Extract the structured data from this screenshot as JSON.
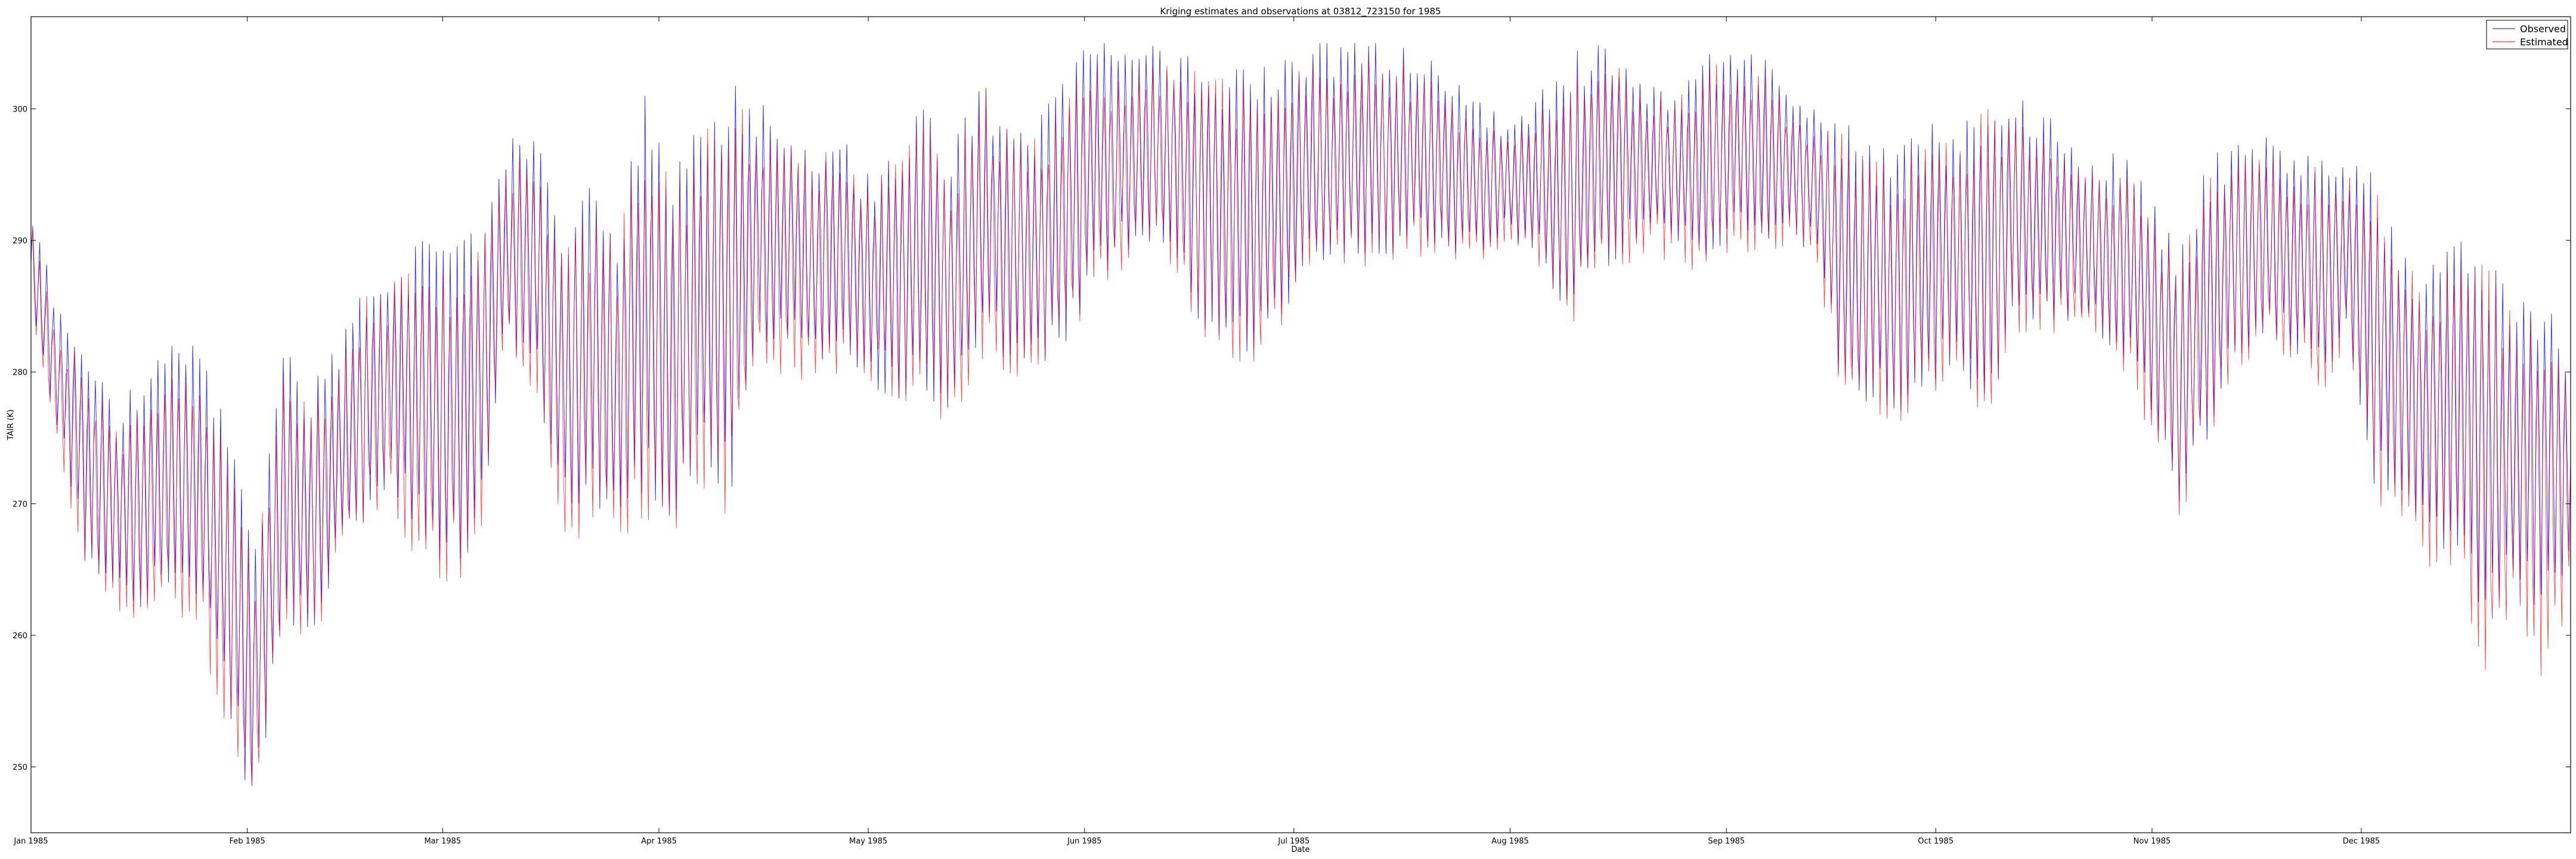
{
  "chart_data": {
    "type": "line",
    "title": "Kriging estimates and observations at 03812_723150 for 1985",
    "xlabel": "Date",
    "ylabel": "TAIR (K)",
    "xlim": [
      "1985-01-01",
      "1985-12-31"
    ],
    "ylim": [
      245,
      307
    ],
    "grid": false,
    "legend_position": "top-right",
    "x_ticks": [
      "Jan 1985",
      "Feb 1985",
      "Mar 1985",
      "Apr 1985",
      "May 1985",
      "Jun 1985",
      "Jul 1985",
      "Aug 1985",
      "Sep 1985",
      "Oct 1985",
      "Nov 1985",
      "Dec 1985"
    ],
    "x_tick_dates": [
      "1985-01-01",
      "1985-02-01",
      "1985-03-01",
      "1985-04-01",
      "1985-05-01",
      "1985-06-01",
      "1985-07-01",
      "1985-08-01",
      "1985-09-01",
      "1985-10-01",
      "1985-11-01",
      "1985-12-01"
    ],
    "y_ticks": [
      250,
      260,
      270,
      280,
      290,
      300
    ],
    "x": [
      "1985-01-01",
      "1985-01-05",
      "1985-01-09",
      "1985-01-13",
      "1985-01-17",
      "1985-01-21",
      "1985-01-25",
      "1985-01-29",
      "1985-02-02",
      "1985-02-06",
      "1985-02-10",
      "1985-02-14",
      "1985-02-18",
      "1985-02-22",
      "1985-02-26",
      "1985-03-02",
      "1985-03-06",
      "1985-03-10",
      "1985-03-14",
      "1985-03-18",
      "1985-03-22",
      "1985-03-26",
      "1985-03-30",
      "1985-04-03",
      "1985-04-07",
      "1985-04-11",
      "1985-04-15",
      "1985-04-19",
      "1985-04-23",
      "1985-04-27",
      "1985-05-01",
      "1985-05-05",
      "1985-05-09",
      "1985-05-13",
      "1985-05-17",
      "1985-05-21",
      "1985-05-25",
      "1985-05-29",
      "1985-06-02",
      "1985-06-06",
      "1985-06-10",
      "1985-06-14",
      "1985-06-18",
      "1985-06-22",
      "1985-06-26",
      "1985-06-30",
      "1985-07-04",
      "1985-07-08",
      "1985-07-12",
      "1985-07-16",
      "1985-07-20",
      "1985-07-24",
      "1985-07-28",
      "1985-08-01",
      "1985-08-05",
      "1985-08-09",
      "1985-08-13",
      "1985-08-17",
      "1985-08-21",
      "1985-08-25",
      "1985-08-29",
      "1985-09-02",
      "1985-09-06",
      "1985-09-10",
      "1985-09-14",
      "1985-09-18",
      "1985-09-22",
      "1985-09-26",
      "1985-09-30",
      "1985-10-04",
      "1985-10-08",
      "1985-10-12",
      "1985-10-16",
      "1985-10-20",
      "1985-10-24",
      "1985-10-28",
      "1985-11-01",
      "1985-11-05",
      "1985-11-09",
      "1985-11-13",
      "1985-11-17",
      "1985-11-21",
      "1985-11-25",
      "1985-11-29",
      "1985-12-03",
      "1985-12-07",
      "1985-12-11",
      "1985-12-15",
      "1985-12-19",
      "1985-12-23",
      "1985-12-27",
      "1985-12-31"
    ],
    "series": [
      {
        "name": "Observed",
        "color": "#0000ff",
        "low": [
          284,
          276,
          266,
          265,
          263,
          265,
          263,
          256,
          247,
          262,
          261,
          266,
          270,
          272,
          268,
          266,
          268,
          283,
          281,
          271,
          271,
          270,
          272,
          270,
          275,
          271,
          282,
          283,
          281,
          283,
          280,
          279,
          279,
          278,
          283,
          282,
          281,
          283,
          287,
          290,
          291,
          290,
          284,
          282,
          283,
          286,
          289,
          290,
          290,
          290,
          291,
          290,
          290,
          291,
          290,
          285,
          288,
          290,
          291,
          290,
          289,
          291,
          291,
          291,
          290,
          278,
          279,
          278,
          280,
          282,
          276,
          285,
          285,
          285,
          284,
          282,
          278,
          271,
          276,
          282,
          284,
          283,
          280,
          284,
          272,
          272,
          268,
          267,
          262,
          266,
          262,
          266
        ],
        "high": [
          292,
          284,
          281,
          276,
          279,
          281,
          281,
          275,
          266,
          281,
          278,
          281,
          286,
          287,
          289,
          288,
          290,
          297,
          298,
          289,
          293,
          290,
          300,
          294,
          298,
          301,
          300,
          297,
          297,
          297,
          294,
          297,
          299,
          296,
          301,
          299,
          298,
          301,
          305,
          303,
          304,
          303,
          303,
          302,
          302,
          303,
          304,
          304,
          304,
          304,
          303,
          301,
          300,
          298,
          300,
          303,
          304,
          303,
          301,
          301,
          303,
          304,
          303,
          301,
          299,
          298,
          296,
          296,
          298,
          297,
          300,
          300,
          299,
          297,
          295,
          296,
          292,
          288,
          295,
          297,
          297,
          295,
          296,
          295,
          294,
          288,
          287,
          289,
          288,
          284,
          285,
          280
        ]
      },
      {
        "name": "Estimated",
        "color": "#ff0000",
        "low": [
          284,
          274,
          266,
          263,
          262,
          263,
          261,
          254,
          246,
          260,
          260,
          265,
          270,
          270,
          266,
          265,
          266,
          282,
          279,
          269,
          268,
          268,
          270,
          268,
          272,
          270,
          280,
          281,
          280,
          281,
          280,
          279,
          278,
          277,
          282,
          281,
          280,
          282,
          286,
          288,
          290,
          289,
          283,
          281,
          282,
          285,
          288,
          289,
          289,
          289,
          290,
          289,
          289,
          290,
          289,
          284,
          287,
          289,
          290,
          289,
          288,
          290,
          290,
          290,
          289,
          277,
          278,
          277,
          278,
          281,
          275,
          284,
          284,
          284,
          283,
          281,
          276,
          270,
          275,
          281,
          283,
          282,
          279,
          283,
          271,
          270,
          266,
          265,
          258,
          264,
          257,
          263
        ],
        "high": [
          291,
          283,
          279,
          275,
          277,
          279,
          279,
          273,
          264,
          279,
          277,
          280,
          285,
          286,
          287,
          287,
          288,
          295,
          296,
          288,
          291,
          289,
          298,
          293,
          297,
          299,
          299,
          296,
          296,
          296,
          293,
          295,
          298,
          295,
          300,
          298,
          297,
          300,
          303,
          301,
          303,
          302,
          302,
          301,
          301,
          302,
          303,
          303,
          303,
          303,
          302,
          300,
          299,
          297,
          299,
          301,
          303,
          302,
          300,
          300,
          302,
          303,
          302,
          300,
          298,
          297,
          295,
          295,
          297,
          296,
          299,
          299,
          298,
          296,
          294,
          295,
          291,
          287,
          294,
          296,
          296,
          294,
          295,
          294,
          293,
          287,
          286,
          288,
          287,
          283,
          284,
          279
        ]
      }
    ]
  },
  "legend": {
    "items": [
      {
        "label": "Observed",
        "color": "#0000ff"
      },
      {
        "label": "Estimated",
        "color": "#ff0000"
      }
    ]
  }
}
